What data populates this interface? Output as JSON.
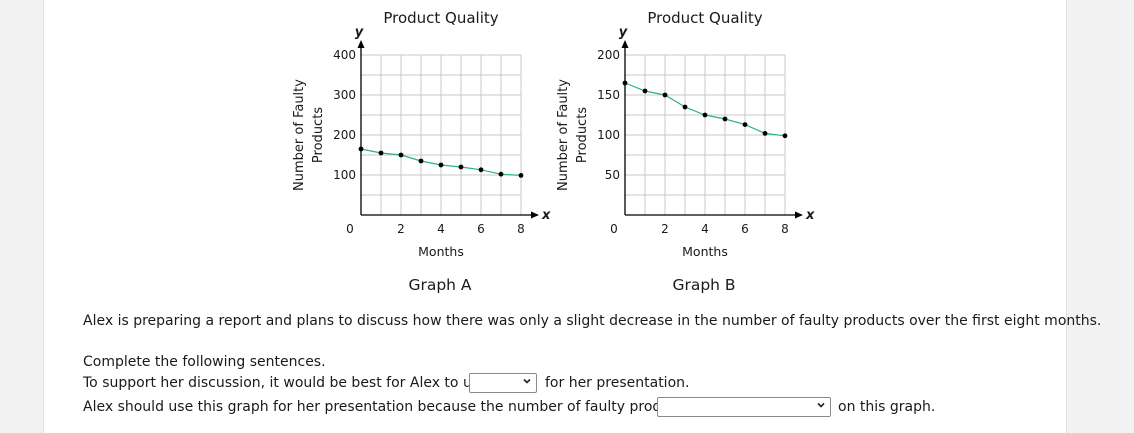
{
  "chart_data": [
    {
      "type": "line",
      "title": "Product Quality",
      "caption": "Graph A",
      "xlabel": "Months",
      "ylabel": "Number of Faulty Products",
      "x_axis_letter": "x",
      "y_axis_letter": "y",
      "origin_label": "0",
      "xlim": [
        0,
        8
      ],
      "ylim": [
        0,
        400
      ],
      "x_ticks": [
        "2",
        "4",
        "6",
        "8"
      ],
      "x_tick_values": [
        2,
        4,
        6,
        8
      ],
      "y_ticks": [
        "100",
        "200",
        "300",
        "400"
      ],
      "y_tick_values": [
        100,
        200,
        300,
        400
      ],
      "x_grid_step": 1,
      "y_grid_step": 50,
      "line_color": "#2bb673",
      "grid": true,
      "x": [
        0,
        1,
        2,
        3,
        4,
        5,
        6,
        7,
        8
      ],
      "y": [
        165,
        155,
        150,
        135,
        125,
        120,
        113,
        102,
        99
      ]
    },
    {
      "type": "line",
      "title": "Product Quality",
      "caption": "Graph B",
      "xlabel": "Months",
      "ylabel": "Number of Faulty Products",
      "x_axis_letter": "x",
      "y_axis_letter": "y",
      "origin_label": "0",
      "xlim": [
        0,
        8
      ],
      "ylim": [
        0,
        200
      ],
      "x_ticks": [
        "2",
        "4",
        "6",
        "8"
      ],
      "x_tick_values": [
        2,
        4,
        6,
        8
      ],
      "y_ticks": [
        "50",
        "100",
        "150",
        "200"
      ],
      "y_tick_values": [
        50,
        100,
        150,
        200
      ],
      "x_grid_step": 1,
      "y_grid_step": 25,
      "line_color": "#2bb673",
      "grid": true,
      "x": [
        0,
        1,
        2,
        3,
        4,
        5,
        6,
        7,
        8
      ],
      "y": [
        165,
        155,
        150,
        135,
        125,
        120,
        113,
        102,
        99
      ]
    }
  ],
  "question": {
    "prompt": "Alex is preparing a report and plans to discuss how there was only a slight decrease in the number of faulty products over the first eight months.",
    "instruction": "Complete the following sentences.",
    "sentence1_before": "To support her discussion, it would be best for Alex to use",
    "sentence1_after": "for her presentation.",
    "sentence2_before": "Alex should use this graph for her presentation because the number of faulty products",
    "sentence2_after": "on this graph.",
    "dropdown1_value": "",
    "dropdown2_value": ""
  }
}
